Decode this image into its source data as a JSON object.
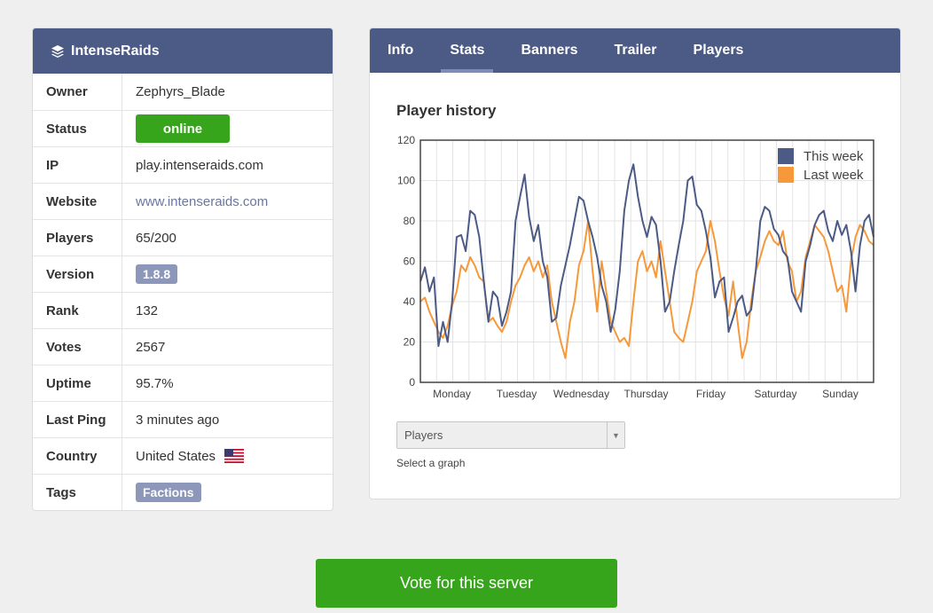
{
  "server": {
    "name": "IntenseRaids",
    "rows": [
      {
        "key": "Owner",
        "value": "Zephyrs_Blade"
      },
      {
        "key": "Status",
        "value": "online"
      },
      {
        "key": "IP",
        "value": "play.intenseraids.com"
      },
      {
        "key": "Website",
        "value": "www.intenseraids.com"
      },
      {
        "key": "Players",
        "value": "65/200"
      },
      {
        "key": "Version",
        "value": "1.8.8"
      },
      {
        "key": "Rank",
        "value": "132"
      },
      {
        "key": "Votes",
        "value": "2567"
      },
      {
        "key": "Uptime",
        "value": "95.7%"
      },
      {
        "key": "Last Ping",
        "value": "3 minutes ago"
      },
      {
        "key": "Country",
        "value": "United States"
      },
      {
        "key": "Tags",
        "value": "Factions"
      }
    ]
  },
  "tabs": [
    {
      "label": "Info"
    },
    {
      "label": "Stats"
    },
    {
      "label": "Banners"
    },
    {
      "label": "Trailer"
    },
    {
      "label": "Players"
    }
  ],
  "active_tab": "Stats",
  "panel": {
    "title": "Player history",
    "select_value": "Players",
    "select_hint": "Select a graph"
  },
  "vote_button": "Vote for this server",
  "colors": {
    "header": "#4c5b86",
    "online": "#36a51b",
    "this_week": "#4c5b86",
    "last_week": "#f7983a"
  },
  "chart_data": {
    "type": "line",
    "x_labels": [
      "Monday",
      "Tuesday",
      "Wednesday",
      "Thursday",
      "Friday",
      "Saturday",
      "Sunday"
    ],
    "ylim": [
      0,
      120
    ],
    "yticks": [
      0,
      20,
      40,
      60,
      80,
      100,
      120
    ],
    "legend_position": "top-right",
    "grid": true,
    "series": [
      {
        "name": "This week",
        "color": "#4c5b86",
        "values": [
          50,
          57,
          45,
          52,
          18,
          30,
          20,
          40,
          72,
          73,
          65,
          85,
          83,
          72,
          50,
          30,
          45,
          42,
          28,
          35,
          45,
          80,
          92,
          103,
          82,
          70,
          78,
          60,
          52,
          30,
          32,
          48,
          58,
          68,
          80,
          92,
          90,
          80,
          72,
          62,
          48,
          40,
          25,
          36,
          55,
          85,
          100,
          108,
          92,
          80,
          72,
          82,
          78,
          60,
          35,
          40,
          55,
          68,
          80,
          100,
          102,
          88,
          85,
          75,
          62,
          42,
          50,
          52,
          25,
          32,
          40,
          43,
          33,
          36,
          55,
          80,
          87,
          85,
          76,
          73,
          65,
          62,
          45,
          40,
          35,
          60,
          68,
          78,
          83,
          85,
          75,
          70,
          80,
          73,
          78,
          65,
          45,
          68,
          80,
          83,
          72
        ]
      },
      {
        "name": "Last week",
        "color": "#f7983a",
        "values": [
          40,
          42,
          35,
          30,
          25,
          22,
          28,
          38,
          45,
          58,
          55,
          62,
          58,
          52,
          50,
          30,
          32,
          28,
          25,
          30,
          40,
          48,
          52,
          58,
          62,
          55,
          60,
          52,
          58,
          40,
          30,
          20,
          12,
          30,
          40,
          58,
          65,
          80,
          55,
          35,
          60,
          45,
          30,
          25,
          20,
          22,
          18,
          40,
          60,
          65,
          55,
          60,
          52,
          70,
          55,
          40,
          25,
          22,
          20,
          30,
          40,
          55,
          60,
          65,
          80,
          70,
          55,
          42,
          33,
          50,
          30,
          12,
          20,
          40,
          55,
          62,
          70,
          75,
          70,
          68,
          75,
          60,
          55,
          40,
          45,
          62,
          70,
          78,
          75,
          72,
          65,
          55,
          45,
          48,
          35,
          60,
          72,
          78,
          75,
          70,
          68
        ]
      }
    ]
  }
}
